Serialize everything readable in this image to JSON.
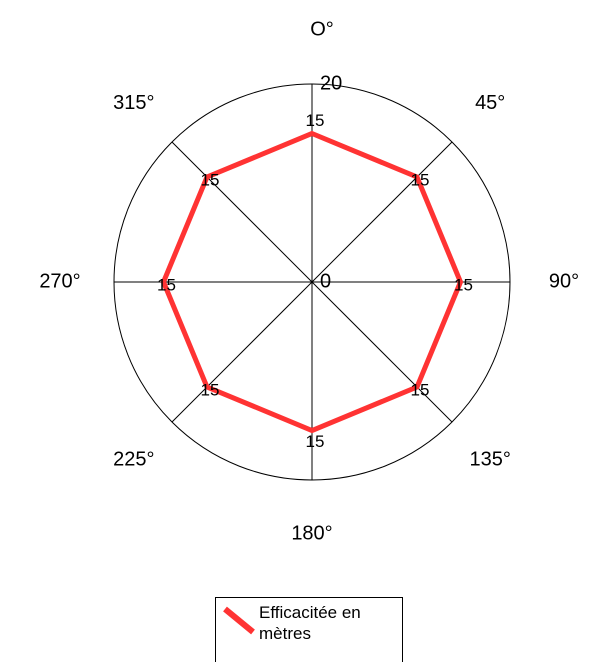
{
  "chart_data": {
    "type": "radar",
    "categories": [
      "O°",
      "45°",
      "90°",
      "135°",
      "180°",
      "225°",
      "270°",
      "315°"
    ],
    "series": [
      {
        "name": "Efficacitée en mètres",
        "color": "#ff3333",
        "values": [
          15,
          15,
          15,
          15,
          15,
          15,
          15,
          15
        ]
      }
    ],
    "ylim": [
      0,
      20
    ],
    "yticks": [
      0,
      20
    ],
    "data_labels": true,
    "legend": "bottom"
  }
}
